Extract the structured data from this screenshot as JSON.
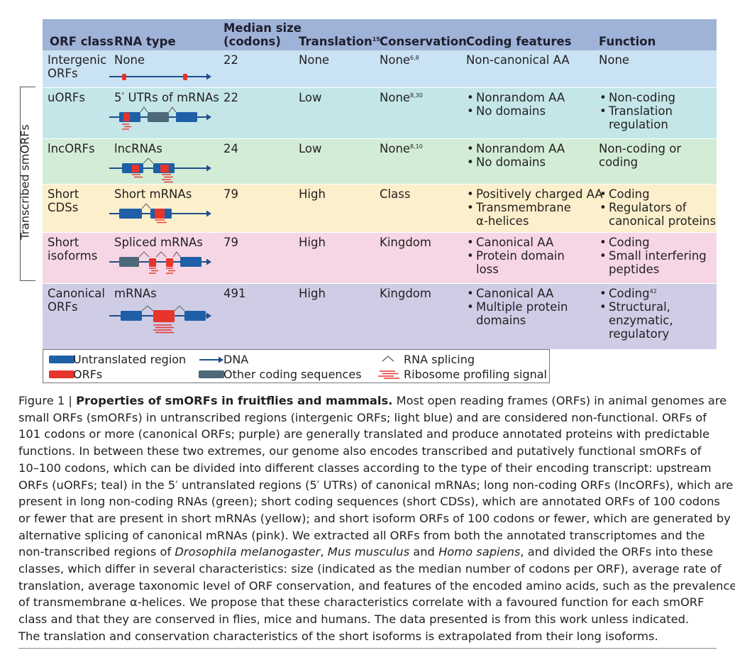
{
  "colors": {
    "header": "#9fb3d8",
    "intergenic": "#c9e3f4",
    "uorfs": "#c4e6e8",
    "lncorfs": "#d3ecd6",
    "short_cds": "#fcefcb",
    "short_isoforms": "#f6d6e4",
    "canonical": "#cfcde6",
    "untranslated": "#1f5fa8",
    "orf": "#e8352c",
    "other_coding": "#4d6878",
    "dna_arrow": "#1f4e8c"
  },
  "table": {
    "headers": {
      "orf_class": "ORF class",
      "rna_type": "RNA type",
      "median_line1": "Median size",
      "median_line2": "(codons)",
      "translation": "Translation",
      "translation_ref": "15",
      "conservation": "Conservation",
      "coding_features": "Coding features",
      "function": "Function"
    },
    "rows": [
      {
        "key": "intergenic",
        "orf_class": [
          "Intergenic",
          "ORFs"
        ],
        "rna_type": "None",
        "median": "22",
        "translation": "None",
        "conservation": "None",
        "conservation_ref": "6,8",
        "coding_features": [
          "Non-canonical AA"
        ],
        "coding_bulleted": false,
        "function": [
          "None"
        ],
        "function_bulleted": false
      },
      {
        "key": "uorfs",
        "orf_class": [
          "uORFs"
        ],
        "rna_type": "5′ UTRs of mRNAs",
        "median": "22",
        "translation": "Low",
        "conservation": "None",
        "conservation_ref": "8,30",
        "coding_features": [
          "Nonrandom AA",
          "No domains"
        ],
        "coding_bulleted": true,
        "function": [
          "Non-coding",
          "Translation",
          "regulation"
        ],
        "function_bulleted": true,
        "function_groups": [
          1,
          2
        ]
      },
      {
        "key": "lncorfs",
        "orf_class": [
          "lncORFs"
        ],
        "rna_type": "lncRNAs",
        "median": "24",
        "translation": "Low",
        "conservation": "None",
        "conservation_ref": "8,10",
        "coding_features": [
          "Nonrandom AA",
          "No domains"
        ],
        "coding_bulleted": true,
        "function": [
          "Non-coding or",
          "coding"
        ],
        "function_bulleted": false
      },
      {
        "key": "short_cds",
        "orf_class": [
          "Short",
          "CDSs"
        ],
        "rna_type": "Short mRNAs",
        "median": "79",
        "translation": "High",
        "conservation": "Class",
        "conservation_ref": "",
        "coding_features": [
          "Positively charged AA",
          "Transmembrane",
          "α-helices"
        ],
        "coding_bulleted": true,
        "coding_groups": [
          1,
          2
        ],
        "function": [
          "Coding",
          "Regulators of",
          "canonical proteins"
        ],
        "function_bulleted": true,
        "function_groups": [
          1,
          2
        ]
      },
      {
        "key": "short_isoforms",
        "orf_class": [
          "Short",
          "isoforms"
        ],
        "rna_type": "Spliced mRNAs",
        "median": "79",
        "translation": "High",
        "conservation": "Kingdom",
        "conservation_ref": "",
        "coding_features": [
          "Canonical AA",
          "Protein domain",
          "loss"
        ],
        "coding_bulleted": true,
        "coding_groups": [
          1,
          2
        ],
        "function": [
          "Coding",
          "Small interfering",
          "peptides"
        ],
        "function_bulleted": true,
        "function_groups": [
          1,
          2
        ]
      },
      {
        "key": "canonical",
        "orf_class": [
          "Canonical",
          "ORFs"
        ],
        "rna_type": "mRNAs",
        "median": "491",
        "translation": "High",
        "conservation": "Kingdom",
        "conservation_ref": "",
        "coding_features": [
          "Canonical AA",
          "Multiple protein",
          "domains"
        ],
        "coding_bulleted": true,
        "coding_groups": [
          1,
          2
        ],
        "function": [
          "Coding",
          "Structural,",
          "enzymatic,",
          "regulatory"
        ],
        "function_bulleted": true,
        "function_groups": [
          1,
          3
        ],
        "function_ref": "42"
      }
    ]
  },
  "side_label": "Transcribed smORFs",
  "legend": {
    "untranslated": "Untranslated region",
    "orfs": "ORFs",
    "dna": "DNA",
    "other_coding": "Other coding sequences",
    "splicing": "RNA splicing",
    "ribosome": "Ribosome profiling signal"
  },
  "caption": {
    "label": "Figure 1",
    "title": "Properties of smORFs in fruitflies and mammals.",
    "lines": [
      "Most open reading frames (ORFs) in animal genomes are",
      "small ORFs (smORFs) in untranscribed regions (intergenic ORFs; light blue) and are considered non-functional. ORFs of",
      "101 codons or more (canonical ORFs; purple) are generally translated and produce annotated proteins with predictable",
      "functions. In between these two extremes, our genome also encodes transcribed and putatively functional smORFs of",
      "10–100 codons, which can be divided into different classes according to the type of their encoding transcript: upstream",
      "ORFs (uORFs; teal) in the 5′ untranslated regions (5′ UTRs) of canonical mRNAs; long non-coding ORFs (lncORFs), which are",
      "present in long non-coding RNAs (green); short coding sequences (short CDSs), which are annotated ORFs of 100 codons",
      "or fewer that are present in short mRNAs (yellow); and short isoform ORFs of 100 codons or fewer, which are generated by",
      "alternative splicing of canonical mRNAs (pink). We extracted all ORFs from both the annotated transcriptomes and the"
    ],
    "species_line": {
      "pre": "non-transcribed regions of ",
      "sp1": "Drosophila melanogaster",
      "mid1": ", ",
      "sp2": "Mus musculus",
      "mid2": " and ",
      "sp3": "Homo sapiens",
      "post": ", and divided the ORFs into these"
    },
    "lines_after": [
      "classes, which differ in several characteristics: size (indicated as the median number of codons per ORF), average rate of",
      "translation, average taxonomic level of ORF conservation, and features of the encoded amino acids, such as the prevalence",
      "of transmembrane α-helices. We propose that these characteristics correlate with a favoured function for each smORF",
      "class and that they are conserved in flies, mice and humans. The data presented is from this work unless indicated.",
      "The translation and conservation characteristics of the short isoforms is extrapolated from their long isoforms."
    ]
  }
}
